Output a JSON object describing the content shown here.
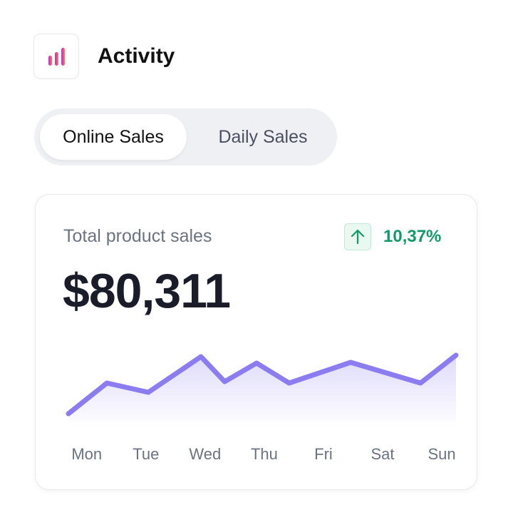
{
  "header": {
    "title": "Activity"
  },
  "tabs": [
    "Online Sales",
    "Daily Sales"
  ],
  "card": {
    "label": "Total product sales",
    "change": "10,37%",
    "total": "$80,311"
  },
  "chart_data": {
    "type": "line",
    "color": "#8b7cf0",
    "categories": [
      "Mon",
      "Tue",
      "Wed",
      "Thu",
      "Fri",
      "Sat",
      "Sun"
    ],
    "x": [
      -0.31,
      0.34,
      1.04,
      1.93,
      2.33,
      2.87,
      3.42,
      4.46,
      5.64,
      6.24
    ],
    "values": [
      20,
      63,
      50,
      100,
      65,
      91,
      63,
      92,
      63,
      102
    ],
    "xlim": [
      -0.31,
      6.24
    ],
    "ylim": [
      0,
      110
    ]
  }
}
